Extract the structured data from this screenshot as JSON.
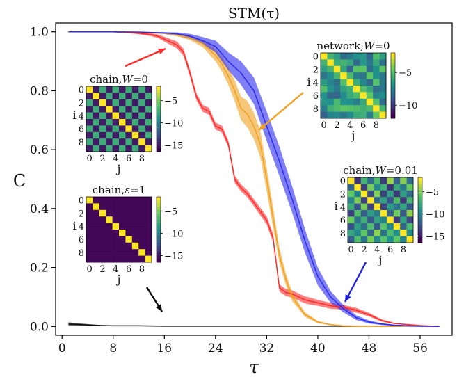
{
  "chart_data": {
    "type": "line",
    "title": "STM(τ)",
    "xlabel": "τ",
    "ylabel": "C",
    "xlim": [
      -1,
      61
    ],
    "ylim": [
      -0.03,
      1.03
    ],
    "xticks": [
      "0",
      "8",
      "16",
      "24",
      "32",
      "40",
      "48",
      "56"
    ],
    "yticks": [
      "0.0",
      "0.2",
      "0.4",
      "0.6",
      "0.8",
      "1.0"
    ],
    "grid": false,
    "series": [
      {
        "color": "#0a0a0a",
        "x": [
          1,
          2,
          4,
          6,
          8,
          12,
          16,
          20,
          30,
          40,
          50,
          59
        ],
        "y": [
          0.008,
          0.007,
          0.005,
          0.003,
          0.002,
          0.002,
          0.001,
          0.001,
          0.001,
          0.001,
          0.001,
          0.001
        ],
        "band": [
          0.006,
          0.005,
          0.003,
          0.002,
          0.001,
          0.001,
          0.001,
          0.001,
          0.001,
          0.001,
          0.001,
          0.001
        ]
      },
      {
        "color": "#ff2a2a",
        "x": [
          1,
          8,
          12,
          14,
          15,
          16,
          17,
          18,
          19,
          20,
          21,
          22,
          23,
          24,
          25,
          26,
          27,
          28,
          29,
          30,
          31,
          32,
          33,
          34,
          35,
          36,
          37,
          38,
          39,
          40,
          42,
          44,
          46,
          48,
          50,
          52,
          56,
          59
        ],
        "y": [
          1.0,
          1.0,
          0.995,
          0.99,
          0.985,
          0.975,
          0.965,
          0.955,
          0.93,
          0.86,
          0.78,
          0.74,
          0.73,
          0.68,
          0.67,
          0.62,
          0.5,
          0.47,
          0.45,
          0.42,
          0.39,
          0.36,
          0.3,
          0.13,
          0.115,
          0.11,
          0.1,
          0.09,
          0.085,
          0.08,
          0.07,
          0.065,
          0.055,
          0.04,
          0.02,
          0.01,
          0.003,
          0.0
        ],
        "band": [
          0.0,
          0.0,
          0.003,
          0.005,
          0.006,
          0.008,
          0.01,
          0.012,
          0.012,
          0.012,
          0.012,
          0.012,
          0.012,
          0.012,
          0.012,
          0.012,
          0.012,
          0.012,
          0.012,
          0.012,
          0.013,
          0.014,
          0.014,
          0.012,
          0.012,
          0.012,
          0.012,
          0.012,
          0.012,
          0.01,
          0.01,
          0.008,
          0.008,
          0.006,
          0.004,
          0.002,
          0.001,
          0.0
        ]
      },
      {
        "color": "#f0a020",
        "x": [
          1,
          8,
          12,
          16,
          18,
          20,
          22,
          24,
          25,
          26,
          27,
          28,
          29,
          30,
          31,
          32,
          33,
          34,
          35,
          36,
          37,
          38,
          40,
          42,
          44,
          48,
          52,
          56,
          59
        ],
        "y": [
          1.0,
          1.0,
          0.999,
          0.995,
          0.99,
          0.98,
          0.96,
          0.92,
          0.89,
          0.85,
          0.8,
          0.74,
          0.72,
          0.68,
          0.62,
          0.5,
          0.37,
          0.24,
          0.16,
          0.1,
          0.07,
          0.04,
          0.015,
          0.006,
          0.002,
          0.001,
          0.0,
          0.0,
          0.0
        ],
        "band": [
          0.0,
          0.0,
          0.001,
          0.003,
          0.005,
          0.008,
          0.012,
          0.02,
          0.025,
          0.03,
          0.035,
          0.04,
          0.045,
          0.045,
          0.045,
          0.04,
          0.035,
          0.025,
          0.02,
          0.015,
          0.01,
          0.008,
          0.004,
          0.002,
          0.001,
          0.0,
          0.0,
          0.0,
          0.0
        ]
      },
      {
        "color": "#2a2af0",
        "x": [
          1,
          8,
          12,
          16,
          18,
          20,
          22,
          24,
          26,
          28,
          30,
          32,
          34,
          36,
          38,
          40,
          42,
          44,
          46,
          48,
          50,
          52,
          56,
          59
        ],
        "y": [
          1.0,
          1.0,
          0.999,
          0.996,
          0.993,
          0.985,
          0.97,
          0.95,
          0.9,
          0.86,
          0.8,
          0.68,
          0.56,
          0.43,
          0.29,
          0.17,
          0.1,
          0.06,
          0.03,
          0.015,
          0.008,
          0.004,
          0.001,
          0.0
        ],
        "band": [
          0.0,
          0.0,
          0.001,
          0.003,
          0.005,
          0.008,
          0.012,
          0.02,
          0.03,
          0.04,
          0.045,
          0.05,
          0.05,
          0.045,
          0.04,
          0.03,
          0.02,
          0.012,
          0.008,
          0.005,
          0.003,
          0.002,
          0.001,
          0.0
        ]
      }
    ],
    "insets": [
      {
        "title": "chain,W=0",
        "title_main": "chain,",
        "title_var": "W",
        "title_rest": "=0",
        "pattern": "checker",
        "ylabel": "i",
        "xlabel": "j",
        "ticks": [
          "0",
          "2",
          "4",
          "6",
          "8"
        ],
        "colorbar_ticks": [
          "−5",
          "−10",
          "−15"
        ]
      },
      {
        "title": "network,W=0",
        "title_main": "network,",
        "title_var": "W",
        "title_rest": "=0",
        "pattern": "random",
        "ylabel": "i",
        "xlabel": "j",
        "ticks": [
          "0",
          "2",
          "4",
          "6",
          "8"
        ],
        "colorbar_ticks": [
          "−5",
          "−10"
        ]
      },
      {
        "title": "chain,ε=1",
        "title_main": "chain,",
        "title_var": "ε",
        "title_rest": "=1",
        "pattern": "diag",
        "ylabel": "i",
        "xlabel": "j",
        "ticks": [
          "0",
          "2",
          "4",
          "6",
          "8"
        ],
        "colorbar_ticks": [
          "−5",
          "−10",
          "−15"
        ]
      },
      {
        "title": "chain,W=0.01",
        "title_main": "chain,",
        "title_var": "W",
        "title_rest": "=0.01",
        "pattern": "checker-noisy",
        "ylabel": "i",
        "xlabel": "j",
        "ticks": [
          "0",
          "2",
          "4",
          "6",
          "8"
        ],
        "colorbar_ticks": [
          "−5",
          "−10",
          "−15"
        ]
      }
    ],
    "arrow_colors": [
      "#ff2a2a",
      "#f0a020",
      "#0a0a0a",
      "#2020e0"
    ]
  }
}
